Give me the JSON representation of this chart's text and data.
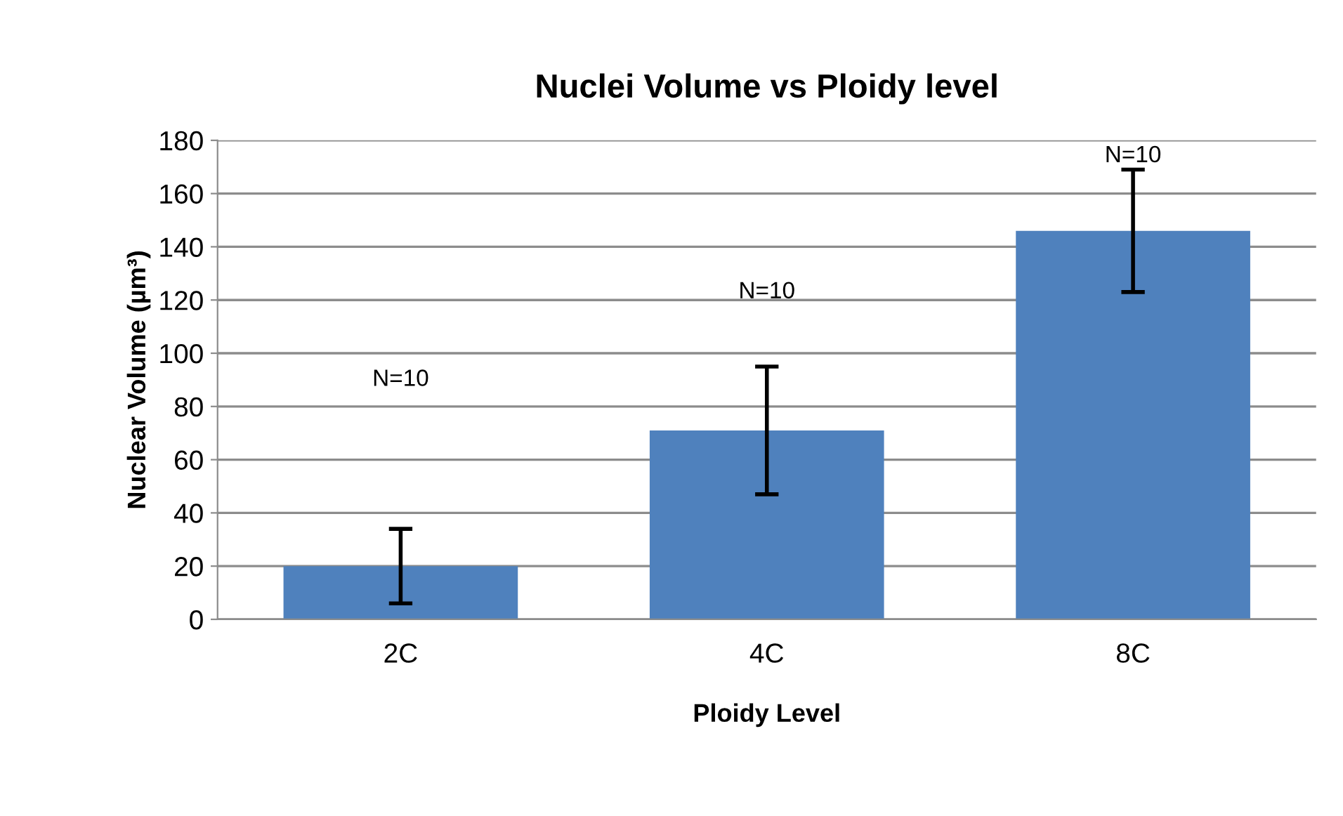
{
  "chart_data": {
    "type": "bar",
    "title": "Nuclei Volume vs Ploidy level",
    "xlabel": "Ploidy Level",
    "ylabel": "Nuclear Volume (µm³)",
    "categories": [
      "2C",
      "4C",
      "8C"
    ],
    "values": [
      20,
      71,
      146
    ],
    "errors": [
      14,
      24,
      23
    ],
    "color": "#4f81bd",
    "ylim": [
      0,
      180
    ],
    "yticks": [
      0,
      20,
      40,
      60,
      80,
      100,
      120,
      140,
      160,
      180
    ],
    "grid": "y",
    "legend": false,
    "annotations": [
      "N=10",
      "N=10",
      "N=10"
    ]
  }
}
